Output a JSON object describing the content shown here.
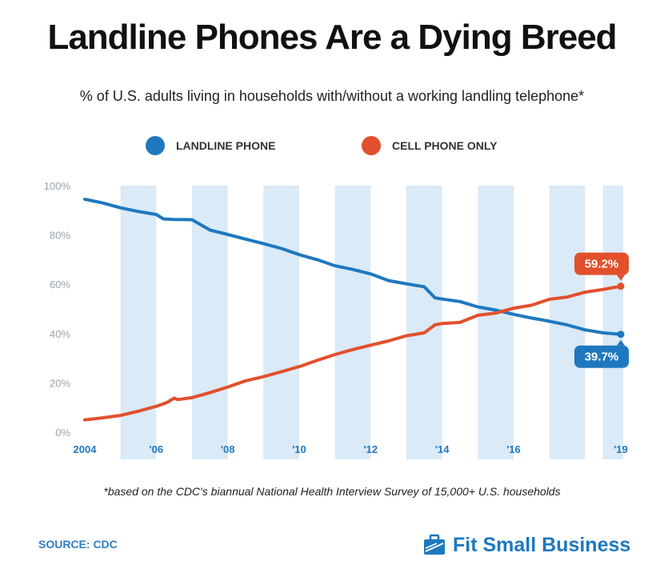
{
  "title": "Landline Phones Are a Dying Breed",
  "subtitle": "% of U.S. adults living in households with/without a working landling telephone*",
  "footnote": "*based on the CDC's biannual National Health Interview Survey of 15,000+ U.S. households",
  "source": "SOURCE: CDC",
  "brand": "Fit Small Business",
  "colors": {
    "landline": "#1f78be",
    "cell": "#e2502d",
    "band": "#daeaf6",
    "axis_text": "#9aa3ab",
    "xtick_text": "#1f78be"
  },
  "chart_data": {
    "type": "line",
    "xlabel": "",
    "ylabel": "",
    "xlim": [
      2004,
      2019
    ],
    "ylim": [
      0,
      100
    ],
    "yticks": [
      {
        "value": 0,
        "label": "0%"
      },
      {
        "value": 20,
        "label": "20%"
      },
      {
        "value": 40,
        "label": "40%"
      },
      {
        "value": 60,
        "label": "60%"
      },
      {
        "value": 80,
        "label": "80%"
      },
      {
        "value": 100,
        "label": "100%"
      }
    ],
    "xticks": [
      {
        "value": 2004,
        "label": "2004"
      },
      {
        "value": 2006,
        "label": "'06"
      },
      {
        "value": 2008,
        "label": "'08"
      },
      {
        "value": 2010,
        "label": "'10"
      },
      {
        "value": 2012,
        "label": "'12"
      },
      {
        "value": 2014,
        "label": "'14"
      },
      {
        "value": 2016,
        "label": "'16"
      },
      {
        "value": 2019,
        "label": "'19"
      }
    ],
    "legend_position": "top",
    "series": [
      {
        "name": "LANDLINE PHONE",
        "color": "#1f78be",
        "end_label": "39.7%",
        "points": [
          [
            2004,
            94.5
          ],
          [
            2004.5,
            93
          ],
          [
            2005,
            91
          ],
          [
            2005.5,
            89.5
          ],
          [
            2006,
            88.3
          ],
          [
            2006.2,
            86.5
          ],
          [
            2006.5,
            86.3
          ],
          [
            2007,
            86.2
          ],
          [
            2007.5,
            82
          ],
          [
            2008,
            80.2
          ],
          [
            2008.5,
            78.3
          ],
          [
            2009,
            76.5
          ],
          [
            2009.5,
            74.5
          ],
          [
            2010,
            72
          ],
          [
            2010.5,
            70
          ],
          [
            2011,
            67.5
          ],
          [
            2011.5,
            66
          ],
          [
            2012,
            64.2
          ],
          [
            2012.5,
            61.5
          ],
          [
            2013,
            60.2
          ],
          [
            2013.5,
            59
          ],
          [
            2013.8,
            54.5
          ],
          [
            2014,
            54
          ],
          [
            2014.5,
            53
          ],
          [
            2015,
            50.8
          ],
          [
            2015.5,
            49.5
          ],
          [
            2016,
            47.8
          ],
          [
            2016.5,
            46.3
          ],
          [
            2017,
            45
          ],
          [
            2017.5,
            43.5
          ],
          [
            2018,
            41.5
          ],
          [
            2018.5,
            40.3
          ],
          [
            2019,
            39.7
          ]
        ]
      },
      {
        "name": "CELL PHONE ONLY",
        "color": "#e2502d",
        "end_label": "59.2%",
        "points": [
          [
            2004,
            5
          ],
          [
            2004.5,
            5.8
          ],
          [
            2005,
            6.8
          ],
          [
            2005.5,
            8.5
          ],
          [
            2006,
            10.5
          ],
          [
            2006.3,
            12
          ],
          [
            2006.5,
            13.8
          ],
          [
            2006.6,
            13.2
          ],
          [
            2007,
            14
          ],
          [
            2007.5,
            16
          ],
          [
            2008,
            18.3
          ],
          [
            2008.5,
            20.8
          ],
          [
            2009,
            22.5
          ],
          [
            2009.5,
            24.5
          ],
          [
            2010,
            26.6
          ],
          [
            2010.5,
            29.1
          ],
          [
            2011,
            31.5
          ],
          [
            2011.5,
            33.5
          ],
          [
            2012,
            35.3
          ],
          [
            2012.5,
            37
          ],
          [
            2013,
            39.1
          ],
          [
            2013.5,
            40.3
          ],
          [
            2013.8,
            43.5
          ],
          [
            2014,
            44.1
          ],
          [
            2014.5,
            44.5
          ],
          [
            2015,
            47.4
          ],
          [
            2015.5,
            48.3
          ],
          [
            2016,
            50.3
          ],
          [
            2016.5,
            51.5
          ],
          [
            2017,
            53.9
          ],
          [
            2017.5,
            54.8
          ],
          [
            2018,
            56.8
          ],
          [
            2018.5,
            57.9
          ],
          [
            2019,
            59.2
          ]
        ]
      }
    ]
  }
}
